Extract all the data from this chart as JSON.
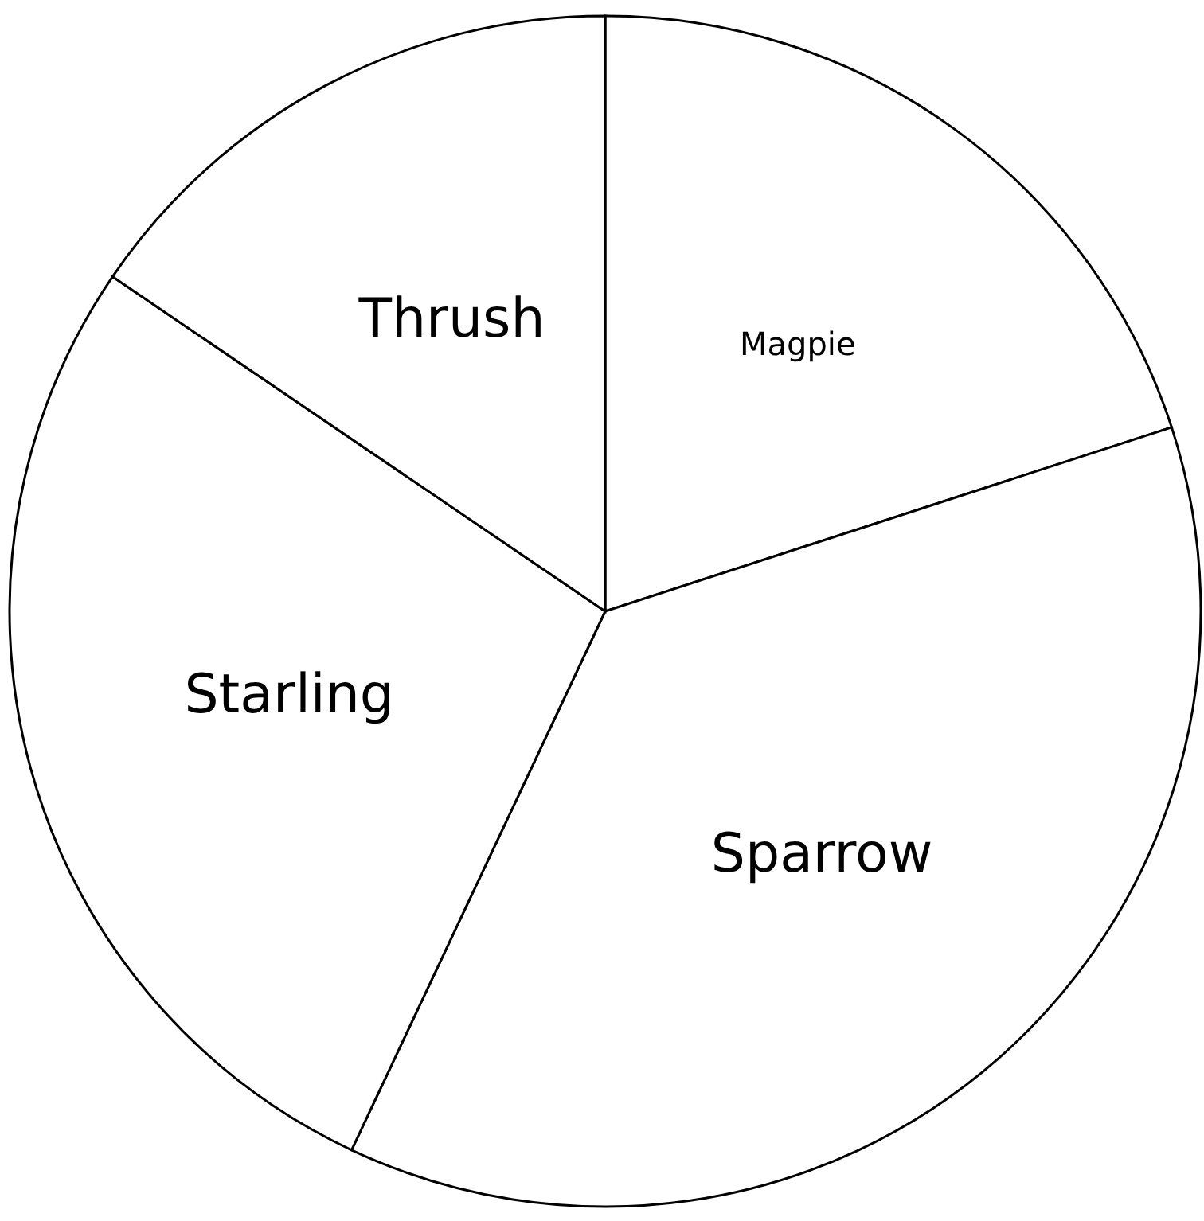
{
  "chart_data": {
    "type": "pie",
    "categories": [
      "Magpie",
      "Sparrow",
      "Starling",
      "Thrush"
    ],
    "values": [
      20,
      37,
      27.5,
      15.5
    ],
    "colors": [
      "#ffffff",
      "#ffffff",
      "#ffffff",
      "#ffffff"
    ]
  }
}
